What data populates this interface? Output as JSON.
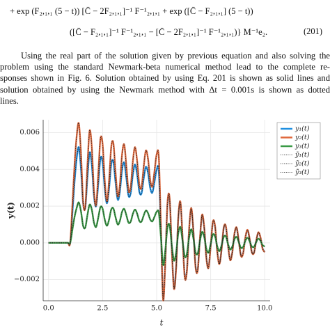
{
  "equation": {
    "lines": [
      "+ exp (F₂,₁,₁ (5 − t)) [C̄ − 2F₂,₁,₁]⁻¹ F⁻¹₂,₁,₁ + exp ([C̄ − F₂,₁,₁] (5 − t))",
      "([C̄ − F₂,₁,₁]⁻¹ F⁻¹₂,₁,₁ − [C̄ − 2F₂,₁,₁]⁻¹ F⁻¹₂,₁,₁)} M⁻¹e₂."
    ],
    "number": "(201)"
  },
  "paragraph": {
    "lines": [
      "Using the real part of the solution given by previous equation and also solving the",
      "problem using the standard Newmark-beta numerical method lead to the complete re-",
      "sponses shown in Fig. 6. Solution obtained by using Eq. 201 is shown as solid lines and",
      "solution obtained by using the Newmark method with Δt = 0.001s is shown as dotted",
      "lines."
    ]
  },
  "chart_data": {
    "type": "line",
    "xlabel": "t",
    "ylabel": "y(t)",
    "grid": true,
    "legend": "outer-right",
    "xlim": [
      -0.25,
      10.25
    ],
    "ylim": [
      -0.00315,
      0.0067
    ],
    "xticks": [
      {
        "value": 0,
        "label": "0.0"
      },
      2.5,
      {
        "value": 5,
        "label": "5.0"
      },
      7.5,
      {
        "value": 10,
        "label": "10.0"
      }
    ],
    "yticks": [
      {
        "value": -0.002,
        "label": "−0.002"
      },
      {
        "value": 0,
        "label": "0.000"
      },
      0.002,
      0.004,
      0.006
    ],
    "x": [
      0,
      0.1,
      0.2,
      0.3,
      0.4,
      0.5,
      0.6,
      0.7,
      0.8,
      0.9,
      1,
      1.1,
      1.2,
      1.3,
      1.4,
      1.5,
      1.6,
      1.7,
      1.8,
      1.9,
      2,
      2.1,
      2.2,
      2.3,
      2.4,
      2.5,
      2.6,
      2.7,
      2.8,
      2.9,
      3,
      3.1,
      3.2,
      3.3,
      3.4,
      3.5,
      3.6,
      3.7,
      3.8,
      3.9,
      4,
      4.1,
      4.2,
      4.3,
      4.4,
      4.5,
      4.6,
      4.7,
      4.8,
      4.9,
      5,
      5.1,
      5.2,
      5.3,
      5.4,
      5.5,
      5.6,
      5.7,
      5.8,
      5.9,
      6,
      6.1,
      6.2,
      6.3,
      6.4,
      6.5,
      6.6,
      6.7,
      6.8,
      6.9,
      7,
      7.1,
      7.2,
      7.3,
      7.4,
      7.5,
      7.6,
      7.7,
      7.8,
      7.9,
      8,
      8.1,
      8.2,
      8.3,
      8.4,
      8.5,
      8.6,
      8.7,
      8.8,
      8.9,
      9,
      9.1,
      9.2,
      9.3,
      9.4,
      9.5,
      9.6,
      9.7,
      9.8,
      9.9,
      10
    ],
    "series": [
      {
        "name": "y₁(t)",
        "color": "#1f8fe0",
        "style": "solid",
        "values": [
          0,
          0,
          0,
          0,
          0,
          0,
          0,
          0,
          0,
          0,
          0,
          0.0016,
          0.0033,
          0.0046,
          0.0052,
          0.00402,
          0.00213,
          0.00194,
          0.00359,
          0.00492,
          0.00426,
          0.00256,
          0.002,
          0.00323,
          0.0046,
          0.00439,
          0.00294,
          0.00215,
          0.00297,
          0.00429,
          0.00442,
          0.00327,
          0.00235,
          0.0028,
          0.00398,
          0.00437,
          0.00352,
          0.00256,
          0.00271,
          0.00372,
          0.00427,
          0.0037,
          0.00278,
          0.00269,
          0.00349,
          0.00413,
          0.00382,
          0.003,
          0.00273,
          0.00332,
          0.00398,
          0.00388,
          0.0005,
          -0.003,
          -0.00103,
          0.00208,
          0.00237,
          -0.00031,
          -0.00241,
          -0.00136,
          0.00131,
          0.00216,
          0.00026,
          -0.00182,
          -0.00149,
          0.00068,
          0.00184,
          0.00063,
          -0.00128,
          -0.00146,
          0.00019,
          0.00148,
          0.00083,
          -0.0008,
          -0.00132,
          -0.00016,
          0.00112,
          0.00091,
          -0.00041,
          -0.00113,
          -0.00039,
          0.00078,
          0.00089,
          -0.00012,
          -0.00091,
          -0.00051,
          0.00049,
          0.00081,
          0.0001,
          -0.00068,
          -0.00056,
          0.00026,
          0.00069,
          0.00023,
          -0.00048,
          -0.00055,
          7e-05,
          0.00055,
          0.00031,
          -0.0003,
          -0.0005
        ]
      },
      {
        "name": "y₂(t)",
        "color": "#e06a3f",
        "style": "solid",
        "values": [
          0,
          0,
          0,
          0,
          0,
          0,
          0,
          0,
          0,
          0,
          0,
          0.002,
          0.0042,
          0.0058,
          0.0065,
          0.00486,
          0.00223,
          0.00197,
          0.00427,
          0.00611,
          0.0052,
          0.00283,
          0.00206,
          0.00377,
          0.00567,
          0.00538,
          0.00337,
          0.00226,
          0.0034,
          0.00523,
          0.00542,
          0.00381,
          0.00254,
          0.00317,
          0.00481,
          0.00535,
          0.00416,
          0.00284,
          0.00305,
          0.00444,
          0.00521,
          0.00442,
          0.00315,
          0.00302,
          0.00413,
          0.00502,
          0.00458,
          0.00344,
          0.00306,
          0.00389,
          0.00481,
          0.00467,
          0.0008,
          -0.0031,
          -0.00106,
          0.00215,
          0.00245,
          -0.00032,
          -0.00249,
          -0.0014,
          0.00135,
          0.00223,
          0.00027,
          -0.00188,
          -0.00153,
          0.0007,
          0.0019,
          0.00065,
          -0.00132,
          -0.0015,
          0.0002,
          0.00153,
          0.00086,
          -0.00083,
          -0.00136,
          -0.00016,
          0.00115,
          0.00094,
          -0.00043,
          -0.00116,
          -0.0004,
          0.00081,
          0.00092,
          -0.00012,
          -0.00094,
          -0.00053,
          0.00051,
          0.00084,
          0.0001,
          -0.00071,
          -0.00058,
          0.00026,
          0.00071,
          0.00024,
          -0.0005,
          -0.00056,
          7e-05,
          0.00057,
          0.00032,
          -0.00031,
          -0.00051
        ]
      },
      {
        "name": "y₃(t)",
        "color": "#3a9a46",
        "style": "solid",
        "values": [
          0,
          0,
          0,
          0,
          0,
          0,
          0,
          0,
          0,
          0,
          0,
          0.0007,
          0.0014,
          0.0019,
          0.0022,
          0.00171,
          0.00092,
          0.00084,
          0.00153,
          0.00208,
          0.00181,
          0.0011,
          0.00087,
          0.00138,
          0.00195,
          0.00186,
          0.00126,
          0.00093,
          0.00127,
          0.00182,
          0.00187,
          0.00139,
          0.001,
          0.0012,
          0.00169,
          0.00185,
          0.0015,
          0.0011,
          0.00116,
          0.00158,
          0.00181,
          0.00158,
          0.00119,
          0.00116,
          0.00149,
          0.00176,
          0.00162,
          0.00128,
          0.00117,
          0.00142,
          0.00169,
          0.00165,
          0.0003,
          -0.0012,
          -0.00041,
          0.00083,
          0.00095,
          -0.00012,
          -0.00096,
          -0.00054,
          0.00052,
          0.00086,
          0.0001,
          -0.00073,
          -0.00059,
          0.00027,
          0.00074,
          0.00025,
          -0.00051,
          -0.00058,
          8e-05,
          0.00059,
          0.00033,
          -0.00032,
          -0.00053,
          -6e-05,
          0.00045,
          0.00036,
          -0.00017,
          -0.00045,
          -0.00015,
          0.00031,
          0.00036,
          -5e-05,
          -0.00036,
          -0.0002,
          0.0002,
          0.00032,
          4e-05,
          -0.00027,
          -0.00022,
          0.0001,
          0.00028,
          9e-05,
          -0.00019,
          -0.00022,
          3e-05,
          0.00022,
          0.00012,
          -0.00012,
          -0.0002
        ]
      },
      {
        "name": "ỹ₁(t)",
        "color": "#222222",
        "style": "dotted",
        "values": [
          0,
          0,
          0,
          0,
          0,
          0,
          0,
          0,
          0,
          0,
          0,
          0.0016,
          0.0033,
          0.0046,
          0.0052,
          0.00402,
          0.00213,
          0.00194,
          0.00359,
          0.00492,
          0.00426,
          0.00256,
          0.002,
          0.00323,
          0.0046,
          0.00439,
          0.00294,
          0.00215,
          0.00297,
          0.00429,
          0.00442,
          0.00327,
          0.00235,
          0.0028,
          0.00398,
          0.00437,
          0.00352,
          0.00256,
          0.00271,
          0.00372,
          0.00427,
          0.0037,
          0.00278,
          0.00269,
          0.00349,
          0.00413,
          0.00382,
          0.003,
          0.00273,
          0.00332,
          0.00398,
          0.00388,
          0.0005,
          -0.003,
          -0.00103,
          0.00208,
          0.00237,
          -0.00031,
          -0.00241,
          -0.00136,
          0.00131,
          0.00216,
          0.00026,
          -0.00182,
          -0.00149,
          0.00068,
          0.00184,
          0.00063,
          -0.00128,
          -0.00146,
          0.00019,
          0.00148,
          0.00083,
          -0.0008,
          -0.00132,
          -0.00016,
          0.00112,
          0.00091,
          -0.00041,
          -0.00113,
          -0.00039,
          0.00078,
          0.00089,
          -0.00012,
          -0.00091,
          -0.00051,
          0.00049,
          0.00081,
          0.0001,
          -0.00068,
          -0.00056,
          0.00026,
          0.00069,
          0.00023,
          -0.00048,
          -0.00055,
          7e-05,
          0.00055,
          0.00031,
          -0.0003,
          -0.0005
        ]
      },
      {
        "name": "ỹ₂(t)",
        "color": "#222222",
        "style": "dotted",
        "values": [
          0,
          0,
          0,
          0,
          0,
          0,
          0,
          0,
          0,
          0,
          0,
          0.002,
          0.0042,
          0.0058,
          0.0065,
          0.00486,
          0.00223,
          0.00197,
          0.00427,
          0.00611,
          0.0052,
          0.00283,
          0.00206,
          0.00377,
          0.00567,
          0.00538,
          0.00337,
          0.00226,
          0.0034,
          0.00523,
          0.00542,
          0.00381,
          0.00254,
          0.00317,
          0.00481,
          0.00535,
          0.00416,
          0.00284,
          0.00305,
          0.00444,
          0.00521,
          0.00442,
          0.00315,
          0.00302,
          0.00413,
          0.00502,
          0.00458,
          0.00344,
          0.00306,
          0.00389,
          0.00481,
          0.00467,
          0.0008,
          -0.0031,
          -0.00106,
          0.00215,
          0.00245,
          -0.00032,
          -0.00249,
          -0.0014,
          0.00135,
          0.00223,
          0.00027,
          -0.00188,
          -0.00153,
          0.0007,
          0.0019,
          0.00065,
          -0.00132,
          -0.0015,
          0.0002,
          0.00153,
          0.00086,
          -0.00083,
          -0.00136,
          -0.00016,
          0.00115,
          0.00094,
          -0.00043,
          -0.00116,
          -0.0004,
          0.00081,
          0.00092,
          -0.00012,
          -0.00094,
          -0.00053,
          0.00051,
          0.00084,
          0.0001,
          -0.00071,
          -0.00058,
          0.00026,
          0.00071,
          0.00024,
          -0.0005,
          -0.00056,
          7e-05,
          0.00057,
          0.00032,
          -0.00031,
          -0.00051
        ]
      },
      {
        "name": "ỹ₃(t)",
        "color": "#222222",
        "style": "dotted",
        "values": [
          0,
          0,
          0,
          0,
          0,
          0,
          0,
          0,
          0,
          0,
          0,
          0.0007,
          0.0014,
          0.0019,
          0.0022,
          0.00171,
          0.00092,
          0.00084,
          0.00153,
          0.00208,
          0.00181,
          0.0011,
          0.00087,
          0.00138,
          0.00195,
          0.00186,
          0.00126,
          0.00093,
          0.00127,
          0.00182,
          0.00187,
          0.00139,
          0.001,
          0.0012,
          0.00169,
          0.00185,
          0.0015,
          0.0011,
          0.00116,
          0.00158,
          0.00181,
          0.00158,
          0.00119,
          0.00116,
          0.00149,
          0.00176,
          0.00162,
          0.00128,
          0.00117,
          0.00142,
          0.00169,
          0.00165,
          0.0003,
          -0.0012,
          -0.00041,
          0.00083,
          0.00095,
          -0.00012,
          -0.00096,
          -0.00054,
          0.00052,
          0.00086,
          0.0001,
          -0.00073,
          -0.00059,
          0.00027,
          0.00074,
          0.00025,
          -0.00051,
          -0.00058,
          8e-05,
          0.00059,
          0.00033,
          -0.00032,
          -0.00053,
          -6e-05,
          0.00045,
          0.00036,
          -0.00017,
          -0.00045,
          -0.00015,
          0.00031,
          0.00036,
          -5e-05,
          -0.00036,
          -0.0002,
          0.0002,
          0.00032,
          4e-05,
          -0.00027,
          -0.00022,
          0.0001,
          0.00028,
          9e-05,
          -0.00019,
          -0.00022,
          3e-05,
          0.00022,
          0.00012,
          -0.00012,
          -0.0002
        ]
      }
    ]
  }
}
